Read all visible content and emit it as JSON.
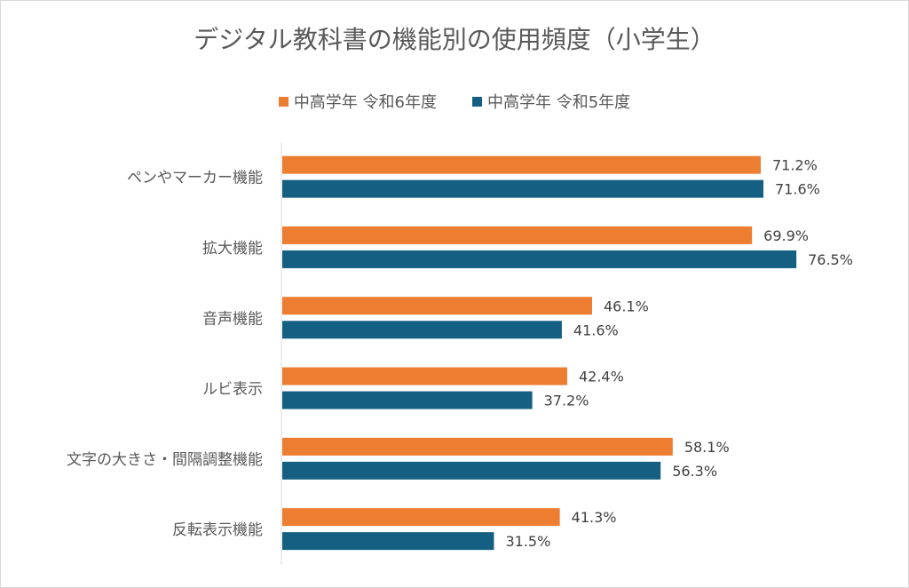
{
  "chart_data": {
    "type": "bar",
    "orientation": "horizontal",
    "title": "デジタル教科書の機能別の使用頻度（小学生）",
    "categories": [
      "ペンやマーカー機能",
      "拡大機能",
      "音声機能",
      "ルビ表示",
      "文字の大きさ・間隔調整機能",
      "反転表示機能"
    ],
    "series": [
      {
        "name": "中高学年 令和6年度",
        "color": "#ED7D31",
        "values": [
          71.2,
          69.9,
          46.1,
          42.4,
          58.1,
          41.3
        ]
      },
      {
        "name": "中高学年 令和5年度",
        "color": "#156082",
        "values": [
          71.6,
          76.5,
          41.6,
          37.2,
          56.3,
          31.5
        ]
      }
    ],
    "value_suffix": "%",
    "xlim": [
      0,
      100
    ],
    "grid": false,
    "legend_position": "top"
  }
}
